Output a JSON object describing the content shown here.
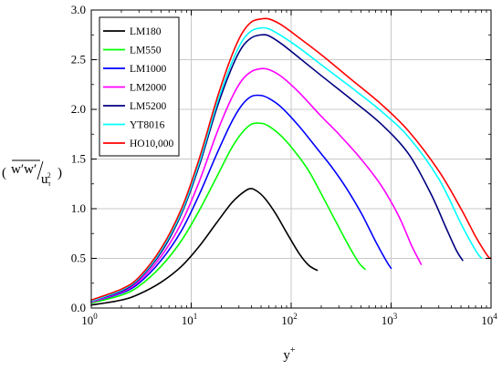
{
  "chart_data": {
    "type": "line",
    "x_scale": "log",
    "xlim": [
      1,
      10000
    ],
    "ylim": [
      0.0,
      3.0
    ],
    "grid": true,
    "legend_position": "top-left",
    "x_ticks": [
      {
        "value": 1,
        "base": "10",
        "exp": "0"
      },
      {
        "value": 10,
        "base": "10",
        "exp": "1"
      },
      {
        "value": 100,
        "base": "10",
        "exp": "2"
      },
      {
        "value": 1000,
        "base": "10",
        "exp": "3"
      },
      {
        "value": 10000,
        "base": "10",
        "exp": "4"
      }
    ],
    "y_ticks": [
      {
        "value": 0.0,
        "label": "0.0"
      },
      {
        "value": 0.5,
        "label": "0.5"
      },
      {
        "value": 1.0,
        "label": "1.0"
      },
      {
        "value": 1.5,
        "label": "1.5"
      },
      {
        "value": 2.0,
        "label": "2.0"
      },
      {
        "value": 2.5,
        "label": "2.5"
      },
      {
        "value": 3.0,
        "label": "3.0"
      }
    ],
    "xlabel": {
      "main": "y",
      "sup": "+"
    },
    "ylabel": {
      "num": "w′w′",
      "den_main": "u",
      "den_sub": "τ",
      "den_sup": "2"
    },
    "series": [
      {
        "name": "LM180",
        "color": "#000000",
        "x": [
          1,
          2,
          3,
          5,
          8,
          12,
          18,
          25,
          30,
          38,
          45,
          55,
          70,
          90,
          120,
          150,
          182
        ],
        "y": [
          0.03,
          0.08,
          0.14,
          0.26,
          0.42,
          0.62,
          0.86,
          1.05,
          1.13,
          1.2,
          1.18,
          1.1,
          0.95,
          0.76,
          0.55,
          0.43,
          0.38
        ]
      },
      {
        "name": "LM550",
        "color": "#00ff00",
        "x": [
          1,
          2,
          3,
          5,
          8,
          12,
          18,
          25,
          32,
          40,
          50,
          60,
          80,
          110,
          150,
          200,
          280,
          380,
          480,
          550
        ],
        "y": [
          0.05,
          0.13,
          0.22,
          0.42,
          0.68,
          0.98,
          1.32,
          1.6,
          1.76,
          1.85,
          1.86,
          1.83,
          1.73,
          1.57,
          1.38,
          1.15,
          0.87,
          0.62,
          0.45,
          0.39
        ]
      },
      {
        "name": "LM1000",
        "color": "#0000ff",
        "x": [
          1,
          2,
          3,
          5,
          8,
          12,
          18,
          25,
          32,
          40,
          50,
          60,
          80,
          120,
          180,
          250,
          350,
          500,
          700,
          900,
          1000
        ],
        "y": [
          0.06,
          0.15,
          0.25,
          0.48,
          0.78,
          1.14,
          1.55,
          1.86,
          2.04,
          2.13,
          2.14,
          2.11,
          2.02,
          1.83,
          1.61,
          1.43,
          1.22,
          0.96,
          0.67,
          0.47,
          0.4
        ]
      },
      {
        "name": "LM2000",
        "color": "#ff00ff",
        "x": [
          1,
          2,
          3,
          5,
          8,
          12,
          18,
          25,
          32,
          40,
          50,
          60,
          80,
          120,
          200,
          300,
          500,
          800,
          1200,
          1600,
          2000
        ],
        "y": [
          0.06,
          0.16,
          0.27,
          0.52,
          0.86,
          1.27,
          1.76,
          2.1,
          2.29,
          2.38,
          2.41,
          2.4,
          2.33,
          2.17,
          1.93,
          1.75,
          1.5,
          1.23,
          0.92,
          0.63,
          0.44
        ]
      },
      {
        "name": "LM5200",
        "color": "#000080",
        "x": [
          1,
          2,
          3,
          5,
          8,
          12,
          18,
          25,
          32,
          40,
          50,
          60,
          80,
          120,
          200,
          400,
          800,
          1500,
          2500,
          3500,
          4500,
          5200
        ],
        "y": [
          0.07,
          0.17,
          0.29,
          0.56,
          0.95,
          1.43,
          2.01,
          2.4,
          2.62,
          2.72,
          2.75,
          2.74,
          2.66,
          2.52,
          2.34,
          2.1,
          1.85,
          1.55,
          1.15,
          0.82,
          0.58,
          0.48
        ]
      },
      {
        "name": "YT8016",
        "color": "#00ffff",
        "x": [
          1,
          2,
          3,
          5,
          8,
          12,
          18,
          25,
          32,
          40,
          50,
          60,
          80,
          120,
          200,
          400,
          800,
          1500,
          3000,
          5000,
          7000,
          8016
        ],
        "y": [
          0.07,
          0.18,
          0.3,
          0.58,
          0.97,
          1.46,
          2.05,
          2.45,
          2.68,
          2.79,
          2.82,
          2.81,
          2.74,
          2.62,
          2.45,
          2.22,
          1.98,
          1.72,
          1.3,
          0.85,
          0.58,
          0.5
        ]
      },
      {
        "name": "HO10,000",
        "color": "#ff0000",
        "x": [
          1,
          2,
          3,
          5,
          8,
          12,
          18,
          25,
          32,
          40,
          50,
          60,
          80,
          120,
          200,
          400,
          800,
          1500,
          3000,
          5000,
          7000,
          8500,
          9500,
          10000
        ],
        "y": [
          0.08,
          0.19,
          0.31,
          0.6,
          1.0,
          1.5,
          2.1,
          2.52,
          2.76,
          2.88,
          2.91,
          2.91,
          2.85,
          2.72,
          2.55,
          2.3,
          2.05,
          1.78,
          1.38,
          1.0,
          0.72,
          0.58,
          0.51,
          0.5
        ]
      }
    ]
  }
}
